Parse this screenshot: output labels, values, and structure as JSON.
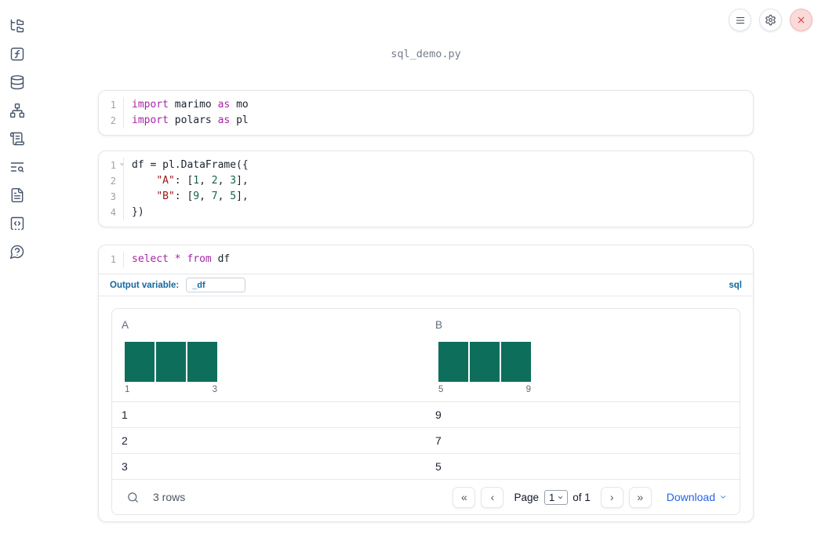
{
  "app": {
    "title": "sql_demo.py"
  },
  "topbar": {
    "buttons": [
      {
        "icon": "menu"
      },
      {
        "icon": "settings"
      },
      {
        "icon": "close"
      }
    ]
  },
  "sidebar": {
    "items": [
      {
        "icon": "file-tree"
      },
      {
        "icon": "function-square"
      },
      {
        "icon": "database"
      },
      {
        "icon": "dependency-graph"
      },
      {
        "icon": "scroll-logs"
      },
      {
        "icon": "text-search"
      },
      {
        "icon": "documentation"
      },
      {
        "icon": "code-snippets"
      },
      {
        "icon": "help-question"
      }
    ]
  },
  "cells": [
    {
      "name": "imports-cell",
      "lines": [
        {
          "n": "1",
          "tokens": [
            {
              "t": "import",
              "c": "kw"
            },
            {
              "t": " marimo ",
              "c": "pl"
            },
            {
              "t": "as",
              "c": "kw"
            },
            {
              "t": " mo",
              "c": "pl"
            }
          ]
        },
        {
          "n": "2",
          "tokens": [
            {
              "t": "import",
              "c": "kw"
            },
            {
              "t": " polars ",
              "c": "pl"
            },
            {
              "t": "as",
              "c": "kw"
            },
            {
              "t": " pl",
              "c": "pl"
            }
          ]
        }
      ]
    },
    {
      "name": "dataframe-cell",
      "lines": [
        {
          "n": "1",
          "fold": true,
          "tokens": [
            {
              "t": "df = pl.DataFrame({",
              "c": "pl"
            }
          ]
        },
        {
          "n": "2",
          "tokens": [
            {
              "t": "    ",
              "c": "pl"
            },
            {
              "t": "\"A\"",
              "c": "str"
            },
            {
              "t": ": [",
              "c": "pl"
            },
            {
              "t": "1",
              "c": "num"
            },
            {
              "t": ", ",
              "c": "pl"
            },
            {
              "t": "2",
              "c": "num"
            },
            {
              "t": ", ",
              "c": "pl"
            },
            {
              "t": "3",
              "c": "num"
            },
            {
              "t": "],",
              "c": "pl"
            }
          ]
        },
        {
          "n": "3",
          "tokens": [
            {
              "t": "    ",
              "c": "pl"
            },
            {
              "t": "\"B\"",
              "c": "str"
            },
            {
              "t": ": [",
              "c": "pl"
            },
            {
              "t": "9",
              "c": "num"
            },
            {
              "t": ", ",
              "c": "pl"
            },
            {
              "t": "7",
              "c": "num"
            },
            {
              "t": ", ",
              "c": "pl"
            },
            {
              "t": "5",
              "c": "num"
            },
            {
              "t": "],",
              "c": "pl"
            }
          ]
        },
        {
          "n": "4",
          "tokens": [
            {
              "t": "})",
              "c": "pl"
            }
          ]
        }
      ]
    }
  ],
  "sql_cell": {
    "lines": [
      {
        "n": "1",
        "tokens": [
          {
            "t": "select",
            "c": "kw"
          },
          {
            "t": " ",
            "c": "pl"
          },
          {
            "t": "*",
            "c": "kw"
          },
          {
            "t": " ",
            "c": "pl"
          },
          {
            "t": "from",
            "c": "kw"
          },
          {
            "t": " df",
            "c": "pl"
          }
        ]
      }
    ],
    "output_variable_label": "Output variable:",
    "output_variable_value": "_df",
    "language_badge": "sql"
  },
  "output_table": {
    "columns": [
      "A",
      "B"
    ],
    "rows": [
      {
        "A": "1",
        "B": "9"
      },
      {
        "A": "2",
        "B": "7"
      },
      {
        "A": "3",
        "B": "5"
      }
    ],
    "row_count_label": "3 rows",
    "pagination": {
      "page_label": "Page",
      "page_value": "1",
      "of_label": "of 1"
    },
    "download_label": "Download"
  },
  "chart_data": [
    {
      "type": "bar",
      "title": "A",
      "x": [
        1,
        2,
        3
      ],
      "values": [
        1,
        1,
        1
      ],
      "xmin_label": "1",
      "xmax_label": "3",
      "bar_color": "#0E6E5C",
      "note": "histogram of column A, 3 equal-count bins"
    },
    {
      "type": "bar",
      "title": "B",
      "x": [
        5,
        7,
        9
      ],
      "values": [
        1,
        1,
        1
      ],
      "xmin_label": "5",
      "xmax_label": "9",
      "bar_color": "#0E6E5C",
      "note": "histogram of column B, 3 equal-count bins"
    }
  ],
  "colors": {
    "accent_blue": "#14689E",
    "download_blue": "#2563EB",
    "histogram_teal": "#0E6E5C",
    "keyword_purple": "#A626A4",
    "string_red": "#A31515",
    "number_green": "#116644",
    "close_red": "#D23B3B"
  }
}
